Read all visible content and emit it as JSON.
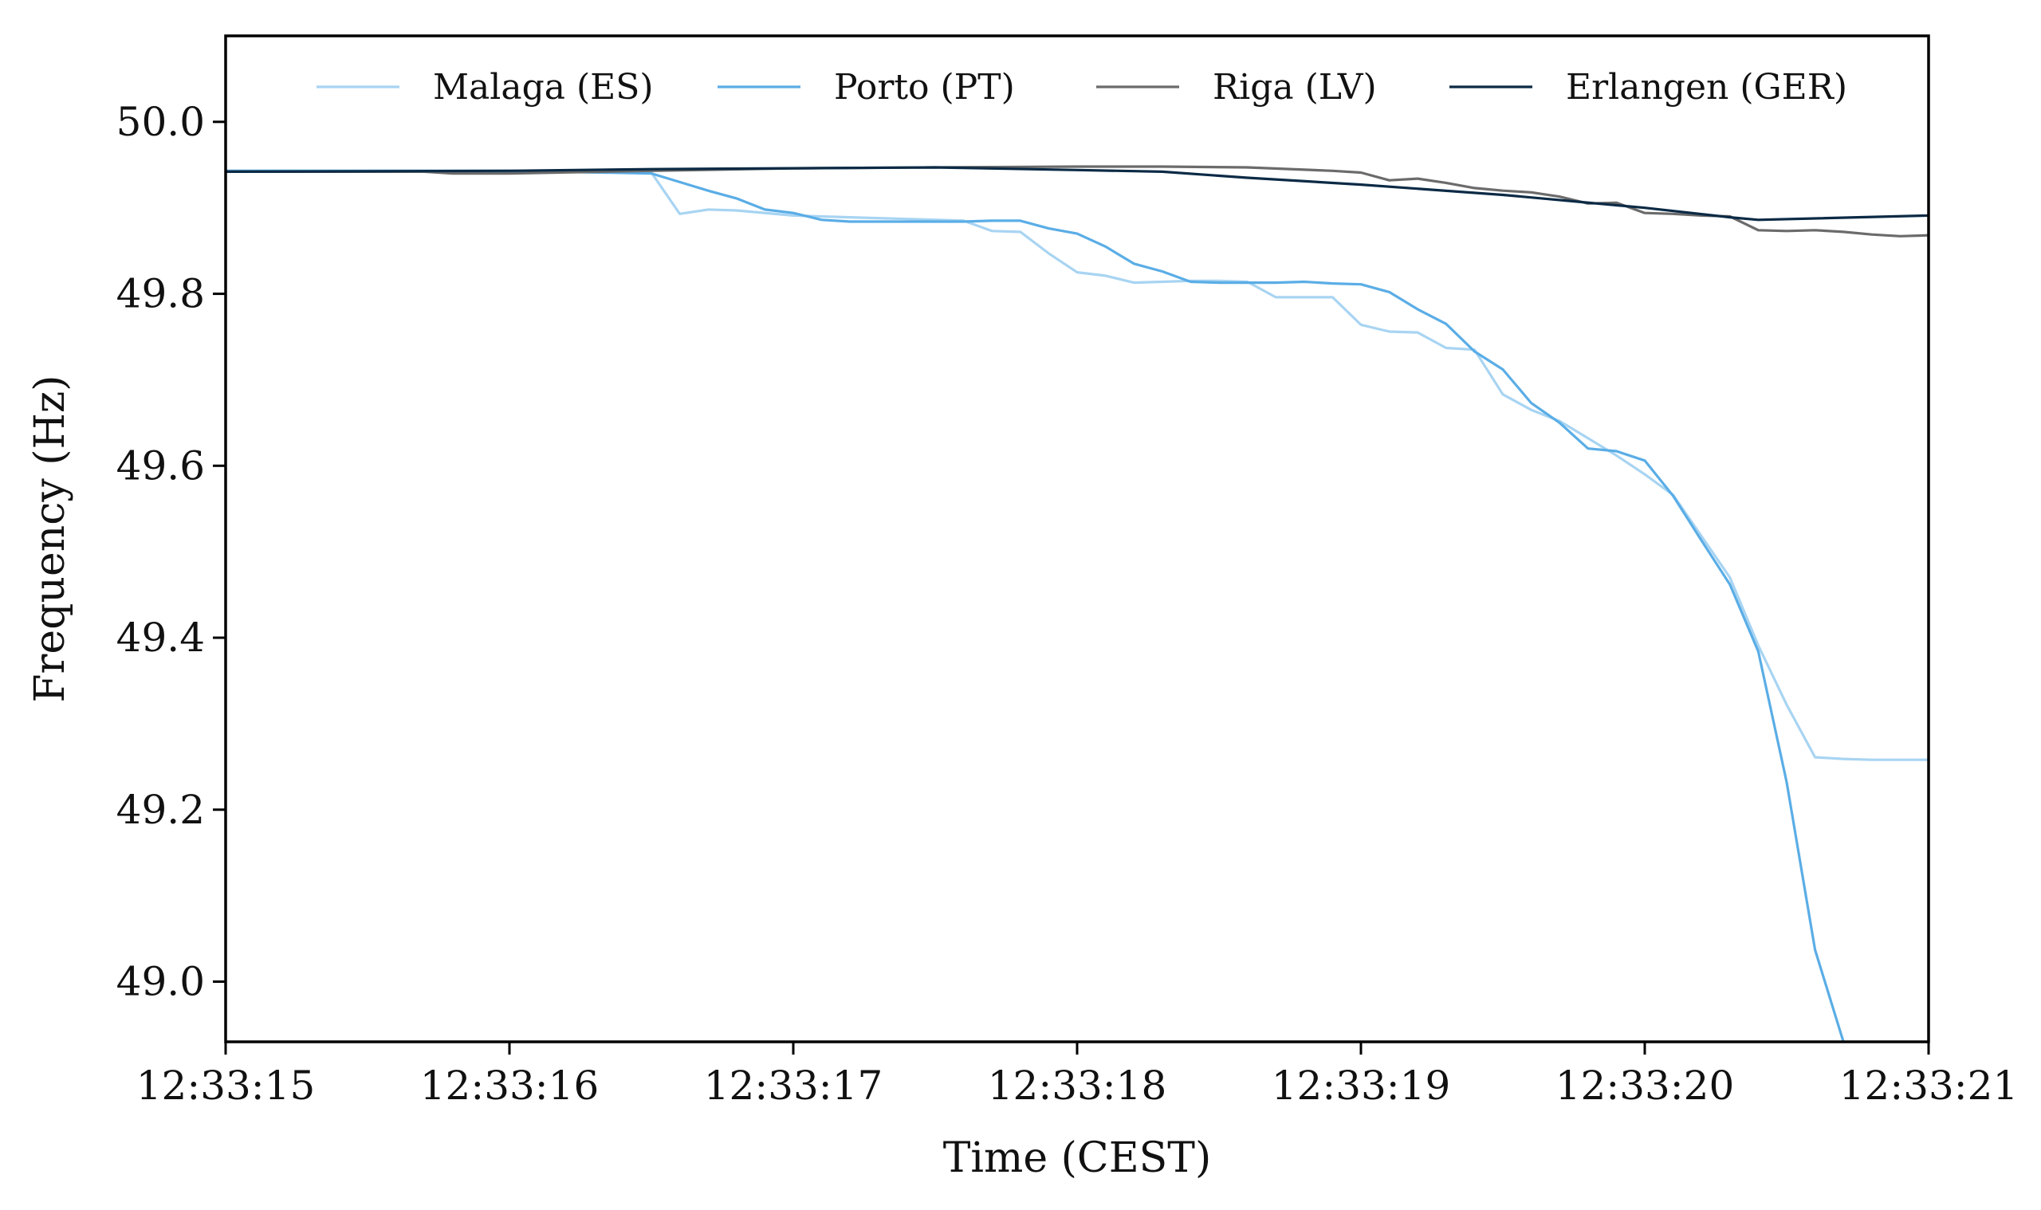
{
  "chart_data": {
    "type": "line",
    "title": "",
    "xlabel": "Time (CEST)",
    "ylabel": "Frequency (Hz)",
    "xlim": [
      0,
      6
    ],
    "ylim": [
      48.93,
      50.1
    ],
    "x_ticks": [
      {
        "value": 0,
        "label": "12:33:15"
      },
      {
        "value": 1,
        "label": "12:33:16"
      },
      {
        "value": 2,
        "label": "12:33:17"
      },
      {
        "value": 3,
        "label": "12:33:18"
      },
      {
        "value": 4,
        "label": "12:33:19"
      },
      {
        "value": 5,
        "label": "12:33:20"
      },
      {
        "value": 6,
        "label": "12:33:21"
      }
    ],
    "y_ticks": [
      {
        "value": 49.0,
        "label": "49.0"
      },
      {
        "value": 49.2,
        "label": "49.2"
      },
      {
        "value": 49.4,
        "label": "49.4"
      },
      {
        "value": 49.6,
        "label": "49.6"
      },
      {
        "value": 49.8,
        "label": "49.8"
      },
      {
        "value": 50.0,
        "label": "50.0"
      }
    ],
    "grid": false,
    "legend_position": "top",
    "series": [
      {
        "name": "Malaga (ES)",
        "color": "#a8d4f2",
        "points": [
          [
            0,
            49.943
          ],
          [
            1.0,
            49.943
          ],
          [
            1.5,
            49.941
          ],
          [
            1.6,
            49.893
          ],
          [
            1.7,
            49.898
          ],
          [
            1.8,
            49.897
          ],
          [
            2.0,
            49.891
          ],
          [
            2.2,
            49.889
          ],
          [
            2.4,
            49.887
          ],
          [
            2.6,
            49.885
          ],
          [
            2.7,
            49.873
          ],
          [
            2.8,
            49.872
          ],
          [
            2.9,
            49.847
          ],
          [
            3.0,
            49.825
          ],
          [
            3.1,
            49.821
          ],
          [
            3.2,
            49.813
          ],
          [
            3.4,
            49.815
          ],
          [
            3.5,
            49.815
          ],
          [
            3.6,
            49.814
          ],
          [
            3.7,
            49.796
          ],
          [
            3.8,
            49.796
          ],
          [
            3.9,
            49.796
          ],
          [
            4.0,
            49.764
          ],
          [
            4.1,
            49.756
          ],
          [
            4.2,
            49.755
          ],
          [
            4.3,
            49.737
          ],
          [
            4.4,
            49.735
          ],
          [
            4.5,
            49.683
          ],
          [
            4.6,
            49.665
          ],
          [
            4.7,
            49.652
          ],
          [
            4.8,
            49.632
          ],
          [
            4.9,
            49.612
          ],
          [
            5.0,
            49.59
          ],
          [
            5.1,
            49.566
          ],
          [
            5.2,
            49.518
          ],
          [
            5.3,
            49.47
          ],
          [
            5.4,
            49.391
          ],
          [
            5.5,
            49.322
          ],
          [
            5.6,
            49.261
          ],
          [
            5.7,
            49.259
          ],
          [
            5.8,
            49.258
          ],
          [
            6.0,
            49.258
          ]
        ]
      },
      {
        "name": "Porto (PT)",
        "color": "#5aade6",
        "points": [
          [
            0,
            49.943
          ],
          [
            1.0,
            49.943
          ],
          [
            1.5,
            49.94
          ],
          [
            1.6,
            49.93
          ],
          [
            1.7,
            49.92
          ],
          [
            1.8,
            49.911
          ],
          [
            1.9,
            49.898
          ],
          [
            2.0,
            49.894
          ],
          [
            2.1,
            49.886
          ],
          [
            2.2,
            49.884
          ],
          [
            2.4,
            49.884
          ],
          [
            2.6,
            49.884
          ],
          [
            2.7,
            49.885
          ],
          [
            2.8,
            49.885
          ],
          [
            2.9,
            49.876
          ],
          [
            3.0,
            49.87
          ],
          [
            3.1,
            49.855
          ],
          [
            3.2,
            49.835
          ],
          [
            3.3,
            49.826
          ],
          [
            3.4,
            49.814
          ],
          [
            3.5,
            49.813
          ],
          [
            3.6,
            49.813
          ],
          [
            3.7,
            49.813
          ],
          [
            3.8,
            49.814
          ],
          [
            3.9,
            49.812
          ],
          [
            4.0,
            49.811
          ],
          [
            4.1,
            49.802
          ],
          [
            4.2,
            49.782
          ],
          [
            4.3,
            49.765
          ],
          [
            4.4,
            49.733
          ],
          [
            4.5,
            49.712
          ],
          [
            4.6,
            49.673
          ],
          [
            4.7,
            49.65
          ],
          [
            4.8,
            49.62
          ],
          [
            4.9,
            49.617
          ],
          [
            5.0,
            49.606
          ],
          [
            5.1,
            49.565
          ],
          [
            5.2,
            49.513
          ],
          [
            5.3,
            49.462
          ],
          [
            5.4,
            49.384
          ],
          [
            5.5,
            49.232
          ],
          [
            5.6,
            49.037
          ],
          [
            5.7,
            48.93
          ]
        ]
      },
      {
        "name": "Riga (LV)",
        "color": "#6b6b6b",
        "points": [
          [
            0,
            49.942
          ],
          [
            0.5,
            49.942
          ],
          [
            0.7,
            49.942
          ],
          [
            0.8,
            49.94
          ],
          [
            1.0,
            49.94
          ],
          [
            1.5,
            49.943
          ],
          [
            2.0,
            49.946
          ],
          [
            2.5,
            49.947
          ],
          [
            3.0,
            49.948
          ],
          [
            3.3,
            49.948
          ],
          [
            3.6,
            49.947
          ],
          [
            3.9,
            49.943
          ],
          [
            4.0,
            49.941
          ],
          [
            4.1,
            49.932
          ],
          [
            4.2,
            49.934
          ],
          [
            4.3,
            49.929
          ],
          [
            4.4,
            49.923
          ],
          [
            4.5,
            49.92
          ],
          [
            4.6,
            49.918
          ],
          [
            4.7,
            49.913
          ],
          [
            4.8,
            49.905
          ],
          [
            4.9,
            49.906
          ],
          [
            5.0,
            49.894
          ],
          [
            5.1,
            49.893
          ],
          [
            5.2,
            49.891
          ],
          [
            5.3,
            49.89
          ],
          [
            5.4,
            49.874
          ],
          [
            5.5,
            49.873
          ],
          [
            5.6,
            49.874
          ],
          [
            5.7,
            49.872
          ],
          [
            5.8,
            49.869
          ],
          [
            5.9,
            49.867
          ],
          [
            6.0,
            49.868
          ]
        ]
      },
      {
        "name": "Erlangen (GER)",
        "color": "#0b2a45",
        "points": [
          [
            0,
            49.942
          ],
          [
            1.0,
            49.943
          ],
          [
            1.5,
            49.945
          ],
          [
            2.0,
            49.946
          ],
          [
            2.5,
            49.947
          ],
          [
            3.0,
            49.944
          ],
          [
            3.3,
            49.942
          ],
          [
            3.6,
            49.935
          ],
          [
            4.0,
            49.927
          ],
          [
            4.5,
            49.915
          ],
          [
            5.0,
            49.9
          ],
          [
            5.3,
            49.889
          ],
          [
            5.4,
            49.886
          ],
          [
            6.0,
            49.891
          ]
        ]
      }
    ]
  }
}
